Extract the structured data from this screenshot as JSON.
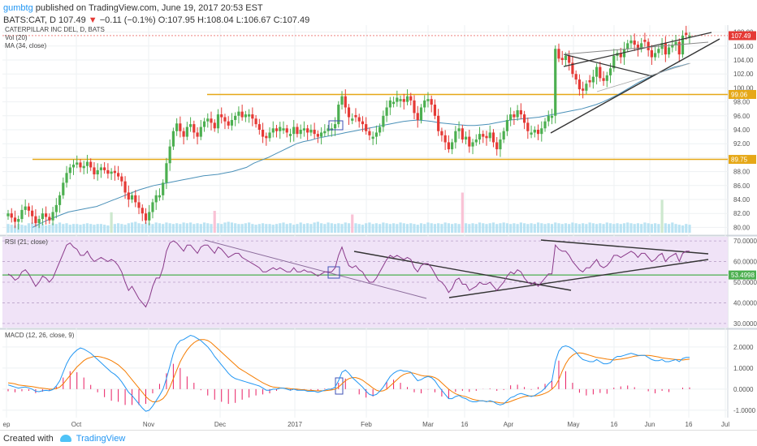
{
  "header": {
    "user": "gumbtg",
    "published": " published on TradingView.com, June 19, 2017 20:53 EST",
    "symbol": "BATS:CAT, D 107.49",
    "change_arrow": "▼",
    "change": "−0.11 (−0.1%)",
    "ohlc": "O:107.95 H:108.04 L:106.67 C:107.49"
  },
  "footer": {
    "created_with": "Created with",
    "brand": "TradingView"
  },
  "colors": {
    "up": "#4caf50",
    "down": "#e53935",
    "ma": "#4a90b8",
    "level": "#e6a817",
    "rsi": "#8a3a8a",
    "rsi_bg": "#f0e3f7",
    "rsi_green": "#4caf50",
    "macd": "#2196f3",
    "signal": "#f57c00",
    "hist": "#e91e63",
    "box": "#3f51b5",
    "volume": "#b3e0f2"
  },
  "chart_data": [
    {
      "type": "candlestick",
      "legend": [
        "CATERPILLAR INC DEL, D, BATS",
        "Vol (20)",
        "MA (34, close)"
      ],
      "x_tick_labels": [
        "ep",
        "Oct",
        "Nov",
        "Dec",
        "2017",
        "Feb",
        "Mar",
        "16",
        "Apr",
        "May",
        "16",
        "Jun",
        "16",
        "Jul"
      ],
      "y_tick_labels": [
        "80.00",
        "82.00",
        "84.00",
        "86.00",
        "88.00",
        "90.00",
        "92.00",
        "94.00",
        "96.00",
        "98.00",
        "100.00",
        "102.00",
        "104.00",
        "106.00",
        "108.00"
      ],
      "ylim": [
        79,
        109
      ],
      "price_labels": [
        {
          "value": 107.49,
          "label": "107.49",
          "color": "#e53935"
        },
        {
          "value": 99.06,
          "label": "99.06",
          "color": "#e6a817"
        },
        {
          "value": 89.75,
          "label": "89.75",
          "color": "#e6a817"
        }
      ],
      "horizontal_levels": [
        99.06,
        89.75
      ],
      "close_series": [
        82.0,
        81.4,
        80.8,
        81.2,
        82.5,
        83.0,
        82.4,
        81.6,
        80.6,
        81.2,
        82.0,
        81.5,
        81.0,
        82.2,
        83.2,
        84.6,
        86.4,
        87.8,
        88.6,
        89.0,
        89.3,
        88.6,
        88.8,
        89.4,
        88.6,
        87.6,
        88.2,
        88.6,
        88.2,
        87.7,
        88.0,
        87.8,
        87.3,
        86.6,
        85.0,
        84.0,
        84.6,
        83.6,
        82.8,
        82.0,
        81.0,
        82.2,
        83.6,
        84.6,
        84.6,
        86.4,
        89.2,
        91.6,
        93.8,
        94.9,
        93.8,
        93.0,
        94.4,
        94.8,
        93.6,
        93.0,
        94.4,
        95.2,
        95.6,
        95.0,
        94.2,
        96.2,
        95.8,
        95.2,
        94.6,
        95.4,
        96.0,
        96.6,
        95.8,
        96.2,
        96.2,
        95.6,
        94.8,
        94.0,
        93.0,
        92.8,
        93.6,
        94.2,
        93.8,
        94.4,
        94.2,
        93.6,
        93.4,
        94.4,
        93.4,
        94.0,
        94.2,
        93.6,
        94.0,
        93.4,
        93.0,
        93.6,
        93.8,
        94.2,
        94.2,
        94.8,
        97.6,
        98.8,
        97.2,
        95.8,
        95.6,
        95.8,
        95.2,
        94.8,
        93.8,
        93.2,
        93.0,
        93.6,
        94.4,
        96.0,
        97.2,
        98.2,
        98.0,
        98.6,
        98.4,
        98.0,
        98.8,
        98.2,
        96.4,
        95.4,
        97.2,
        98.2,
        98.4,
        97.6,
        96.0,
        93.8,
        93.2,
        92.2,
        91.2,
        92.2,
        93.8,
        94.2,
        92.6,
        93.0,
        91.6,
        92.2,
        92.6,
        93.4,
        93.0,
        92.8,
        93.6,
        92.2,
        91.2,
        92.6,
        93.8,
        95.4,
        96.2,
        95.8,
        96.8,
        96.2,
        95.0,
        93.8,
        93.6,
        94.0,
        93.4,
        94.2,
        95.2,
        96.0,
        96.0,
        105.6,
        104.2,
        104.0,
        104.6,
        103.6,
        102.0,
        101.2,
        99.8,
        99.6,
        100.6,
        100.8,
        101.6,
        103.0,
        101.4,
        101.0,
        101.8,
        102.8,
        104.6,
        105.0,
        104.4,
        105.6,
        106.4,
        106.8,
        106.2,
        105.6,
        106.4,
        106.6,
        105.4,
        104.4,
        105.0,
        105.6,
        106.4,
        104.8,
        105.8,
        106.2,
        106.6,
        104.8,
        107.5,
        107.6,
        107.5
      ],
      "ma_series": [
        80.0,
        80.5,
        81.0,
        81.4,
        81.8,
        82.2,
        82.4,
        82.6,
        82.8,
        83.0,
        83.4,
        83.8,
        84.2,
        84.6,
        85.0,
        85.4,
        85.7,
        86.0,
        86.2,
        86.4,
        86.6,
        86.8,
        87.0,
        87.2,
        87.4,
        87.5,
        87.6,
        87.8,
        88.0,
        88.3,
        88.6,
        89.2,
        89.6,
        90.0,
        90.5,
        91.0,
        91.5,
        92.0,
        92.3,
        92.5,
        92.8,
        93.0,
        93.2,
        93.4,
        93.6,
        93.8,
        94.0,
        94.2,
        94.4,
        94.6,
        94.8,
        95.0,
        95.2,
        95.3,
        95.4,
        95.3,
        95.2,
        95.0,
        94.9,
        94.8,
        94.7,
        94.6,
        94.6,
        94.7,
        94.8,
        95.0,
        95.2,
        95.4,
        95.5,
        95.6,
        95.7,
        95.8,
        96.0,
        96.2,
        96.4,
        96.6,
        96.8,
        97.0,
        97.3,
        97.6,
        98.0,
        98.5,
        99.0,
        99.6,
        100.2,
        100.8,
        101.3,
        101.8,
        102.2,
        102.6,
        103.0,
        103.2,
        103.5
      ],
      "volume_series": [
        12,
        11,
        10,
        12,
        11,
        10,
        13,
        14,
        12,
        11,
        12,
        10,
        11,
        13,
        12,
        14,
        12,
        13,
        11,
        12,
        12,
        11,
        12,
        13,
        12,
        11,
        12,
        12,
        11,
        10,
        11,
        12,
        13,
        12,
        11,
        13,
        14,
        15,
        13,
        12,
        14,
        13,
        12,
        14,
        13,
        12,
        14,
        13,
        12,
        13,
        12,
        14,
        13,
        14,
        12,
        13,
        12,
        14,
        13,
        12,
        12,
        13,
        12,
        14,
        15,
        14,
        13,
        12,
        12,
        13,
        14,
        12,
        11,
        12,
        13,
        12,
        12,
        11,
        12,
        13,
        14,
        12,
        13,
        11,
        12,
        14,
        12,
        13,
        12,
        14,
        15,
        13,
        12,
        14,
        13,
        12,
        13,
        12,
        14,
        13,
        12,
        13,
        12,
        11,
        13,
        14,
        12,
        13,
        12,
        14,
        13,
        12,
        13,
        12,
        14,
        13,
        12,
        13,
        12,
        11,
        13,
        12,
        14,
        13,
        12,
        13,
        12,
        14,
        13,
        12,
        13,
        12,
        14,
        13,
        12,
        13,
        12,
        14,
        13,
        12,
        13,
        14,
        12,
        13,
        14,
        13,
        12,
        13,
        12,
        14,
        13,
        12,
        13,
        12,
        14,
        13,
        12,
        13,
        12,
        14,
        13,
        12,
        13,
        12,
        14,
        13,
        12,
        13,
        12,
        14,
        13,
        12,
        13,
        12,
        14,
        13,
        12,
        13,
        12,
        13,
        14,
        13,
        12,
        13,
        12,
        14,
        13,
        12,
        13,
        12,
        11,
        13,
        12,
        14
      ],
      "volume_spikes": {
        "30": 28,
        "60": 30,
        "100": 25,
        "132": 55,
        "190": 45,
        "215": 24
      }
    },
    {
      "type": "line",
      "legend": "RSI (21, close)",
      "y_tick_labels": [
        "30.0000",
        "40.0000",
        "50.0000",
        "60.0000",
        "70.0000"
      ],
      "ylim": [
        28,
        72
      ],
      "price_labels": [
        {
          "value": 53.4998,
          "label": "53.4998",
          "color": "#4caf50"
        }
      ],
      "horizontal_levels": [
        53.4998
      ],
      "rsi_series": [
        54,
        53,
        51,
        52,
        55,
        56,
        54,
        51,
        48,
        50,
        53,
        52,
        50,
        52,
        56,
        60,
        64,
        68,
        69,
        67,
        66,
        63,
        63,
        65,
        62,
        60,
        61,
        62,
        61,
        60,
        61,
        60,
        58,
        55,
        50,
        46,
        48,
        45,
        42,
        40,
        38,
        42,
        48,
        52,
        52,
        57,
        65,
        69,
        70,
        69,
        67,
        65,
        68,
        68,
        66,
        64,
        67,
        68,
        68,
        66,
        64,
        67,
        66,
        64,
        62,
        63,
        64,
        64,
        62,
        61,
        60,
        59,
        58,
        57,
        55,
        55,
        56,
        57,
        56,
        57,
        56,
        55,
        55,
        57,
        55,
        55,
        56,
        55,
        55,
        54,
        53,
        54,
        55,
        55,
        55,
        57,
        63,
        67,
        62,
        58,
        57,
        58,
        56,
        55,
        52,
        50,
        50,
        52,
        55,
        58,
        61,
        63,
        62,
        63,
        62,
        61,
        62,
        61,
        57,
        55,
        58,
        59,
        59,
        57,
        54,
        51,
        50,
        48,
        45,
        47,
        51,
        52,
        49,
        49,
        46,
        47,
        48,
        50,
        49,
        49,
        50,
        48,
        46,
        48,
        50,
        53,
        55,
        54,
        56,
        55,
        52,
        50,
        49,
        50,
        48,
        50,
        52,
        54,
        54,
        68,
        66,
        65,
        65,
        63,
        60,
        58,
        56,
        55,
        57,
        57,
        59,
        61,
        58,
        57,
        58,
        60,
        63,
        63,
        62,
        63,
        64,
        65,
        64,
        62,
        64,
        64,
        62,
        60,
        61,
        63,
        64,
        60,
        62,
        63,
        64,
        60,
        64,
        65,
        65
      ]
    },
    {
      "type": "line",
      "legend": "MACD (12, 26, close, 9)",
      "y_tick_labels": [
        "-1.0000",
        "0.0000",
        "1.0000",
        "2.0000"
      ],
      "ylim": [
        -1.35,
        2.8
      ],
      "macd_series": [
        0.2,
        0.15,
        0.1,
        0.05,
        0.08,
        0.1,
        0.06,
        0.0,
        -0.1,
        -0.12,
        -0.08,
        -0.06,
        -0.08,
        -0.02,
        0.15,
        0.4,
        0.8,
        1.2,
        1.5,
        1.7,
        1.85,
        1.95,
        1.9,
        1.8,
        1.7,
        1.55,
        1.4,
        1.25,
        1.1,
        0.95,
        0.8,
        0.7,
        0.55,
        0.35,
        0.1,
        -0.15,
        -0.3,
        -0.5,
        -0.7,
        -0.9,
        -1.05,
        -1.0,
        -0.8,
        -0.55,
        -0.3,
        0.0,
        0.5,
        1.1,
        1.7,
        2.1,
        2.3,
        2.35,
        2.45,
        2.55,
        2.5,
        2.4,
        2.3,
        2.15,
        2.0,
        1.8,
        1.55,
        1.35,
        1.15,
        0.95,
        0.75,
        0.6,
        0.5,
        0.45,
        0.4,
        0.35,
        0.3,
        0.25,
        0.2,
        0.15,
        0.05,
        -0.05,
        -0.05,
        0.0,
        0.0,
        0.05,
        0.05,
        0.0,
        -0.05,
        0.0,
        -0.05,
        -0.05,
        -0.05,
        -0.1,
        -0.1,
        -0.1,
        -0.15,
        -0.1,
        -0.05,
        0.0,
        0.0,
        0.1,
        0.4,
        0.8,
        0.9,
        0.75,
        0.55,
        0.4,
        0.25,
        0.1,
        -0.1,
        -0.25,
        -0.3,
        -0.25,
        -0.1,
        0.1,
        0.35,
        0.6,
        0.75,
        0.85,
        0.9,
        0.85,
        0.85,
        0.8,
        0.6,
        0.4,
        0.45,
        0.55,
        0.6,
        0.55,
        0.4,
        0.15,
        -0.05,
        -0.25,
        -0.45,
        -0.45,
        -0.35,
        -0.3,
        -0.4,
        -0.45,
        -0.55,
        -0.6,
        -0.6,
        -0.55,
        -0.55,
        -0.6,
        -0.55,
        -0.6,
        -0.7,
        -0.75,
        -0.7,
        -0.55,
        -0.4,
        -0.35,
        -0.25,
        -0.2,
        -0.25,
        -0.3,
        -0.35,
        -0.3,
        -0.2,
        -0.1,
        0.05,
        0.25,
        0.4,
        1.3,
        1.8,
        2.0,
        2.05,
        2.0,
        1.9,
        1.75,
        1.55,
        1.4,
        1.35,
        1.3,
        1.3,
        1.4,
        1.3,
        1.2,
        1.2,
        1.25,
        1.45,
        1.55,
        1.55,
        1.6,
        1.65,
        1.7,
        1.65,
        1.6,
        1.6,
        1.6,
        1.5,
        1.4,
        1.35,
        1.35,
        1.4,
        1.3,
        1.3,
        1.35,
        1.4,
        1.3,
        1.45,
        1.5,
        1.5
      ],
      "signal_series": [
        0.3,
        0.28,
        0.25,
        0.2,
        0.18,
        0.16,
        0.14,
        0.12,
        0.09,
        0.06,
        0.04,
        0.02,
        0.0,
        0.0,
        0.03,
        0.1,
        0.25,
        0.45,
        0.65,
        0.85,
        1.05,
        1.2,
        1.35,
        1.45,
        1.5,
        1.55,
        1.55,
        1.52,
        1.48,
        1.42,
        1.35,
        1.25,
        1.15,
        1.0,
        0.85,
        0.65,
        0.45,
        0.25,
        0.05,
        -0.15,
        -0.35,
        -0.5,
        -0.6,
        -0.6,
        -0.55,
        -0.45,
        -0.25,
        0.1,
        0.5,
        0.9,
        1.3,
        1.6,
        1.85,
        2.05,
        2.2,
        2.3,
        2.35,
        2.35,
        2.3,
        2.2,
        2.05,
        1.9,
        1.75,
        1.6,
        1.45,
        1.3,
        1.15,
        1.0,
        0.9,
        0.8,
        0.7,
        0.6,
        0.5,
        0.4,
        0.3,
        0.22,
        0.15,
        0.1,
        0.08,
        0.06,
        0.05,
        0.04,
        0.02,
        0.01,
        0.0,
        -0.02,
        -0.03,
        -0.05,
        -0.06,
        -0.07,
        -0.08,
        -0.08,
        -0.08,
        -0.06,
        -0.04,
        0.0,
        0.1,
        0.25,
        0.4,
        0.5,
        0.55,
        0.55,
        0.5,
        0.42,
        0.3,
        0.18,
        0.05,
        -0.05,
        -0.1,
        -0.08,
        0.0,
        0.15,
        0.3,
        0.45,
        0.6,
        0.7,
        0.75,
        0.78,
        0.75,
        0.7,
        0.65,
        0.62,
        0.62,
        0.6,
        0.55,
        0.45,
        0.3,
        0.15,
        0.0,
        -0.12,
        -0.22,
        -0.28,
        -0.32,
        -0.36,
        -0.42,
        -0.48,
        -0.52,
        -0.55,
        -0.56,
        -0.58,
        -0.58,
        -0.6,
        -0.62,
        -0.65,
        -0.66,
        -0.64,
        -0.58,
        -0.52,
        -0.46,
        -0.4,
        -0.35,
        -0.33,
        -0.32,
        -0.32,
        -0.3,
        -0.26,
        -0.2,
        -0.12,
        0.0,
        0.15,
        0.45,
        0.85,
        1.2,
        1.45,
        1.6,
        1.7,
        1.72,
        1.7,
        1.65,
        1.6,
        1.55,
        1.5,
        1.48,
        1.45,
        1.42,
        1.4,
        1.38,
        1.4,
        1.42,
        1.45,
        1.48,
        1.52,
        1.56,
        1.58,
        1.6,
        1.6,
        1.6,
        1.58,
        1.55,
        1.52,
        1.48,
        1.46,
        1.44,
        1.42,
        1.4,
        1.4,
        1.38,
        1.4,
        1.42,
        1.44
      ]
    }
  ]
}
